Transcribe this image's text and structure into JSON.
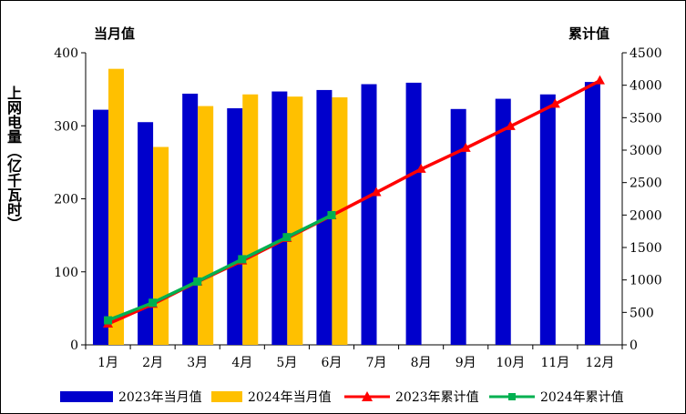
{
  "left_axis_title": "当月值",
  "right_axis_title": "累计值",
  "y_label": "上网电量（亿千瓦时）",
  "colors": {
    "bar2023": "#0000CC",
    "bar2024": "#FFC000",
    "line2023": "#FF0000",
    "line2024": "#00B050"
  },
  "chart_data": {
    "type": "bar",
    "categories": [
      "1月",
      "2月",
      "3月",
      "4月",
      "5月",
      "6月",
      "7月",
      "8月",
      "9月",
      "10月",
      "11月",
      "12月"
    ],
    "y_left": {
      "ylim": [
        0,
        400
      ],
      "ticks": [
        0,
        100,
        200,
        300,
        400
      ]
    },
    "y_right": {
      "ylim": [
        0,
        4500
      ],
      "ticks": [
        0,
        500,
        1000,
        1500,
        2000,
        2500,
        3000,
        3500,
        4000,
        4500
      ]
    },
    "series": [
      {
        "name": "2023年当月值",
        "kind": "bar",
        "axis": "left",
        "values": [
          322,
          305,
          344,
          324,
          347,
          349,
          357,
          359,
          323,
          337,
          343,
          360
        ]
      },
      {
        "name": "2024年当月值",
        "kind": "bar",
        "axis": "left",
        "values": [
          378,
          271,
          327,
          343,
          340,
          339,
          null,
          null,
          null,
          null,
          null,
          null
        ]
      },
      {
        "name": "2023年累计值",
        "kind": "line",
        "axis": "right",
        "marker": "triangle",
        "values": [
          322,
          627,
          971,
          1295,
          1642,
          1991,
          2348,
          2707,
          3030,
          3367,
          3710,
          4070
        ]
      },
      {
        "name": "2024年累计值",
        "kind": "line",
        "axis": "right",
        "marker": "square",
        "values": [
          378,
          649,
          976,
          1319,
          1659,
          1998,
          null,
          null,
          null,
          null,
          null,
          null
        ]
      }
    ]
  }
}
